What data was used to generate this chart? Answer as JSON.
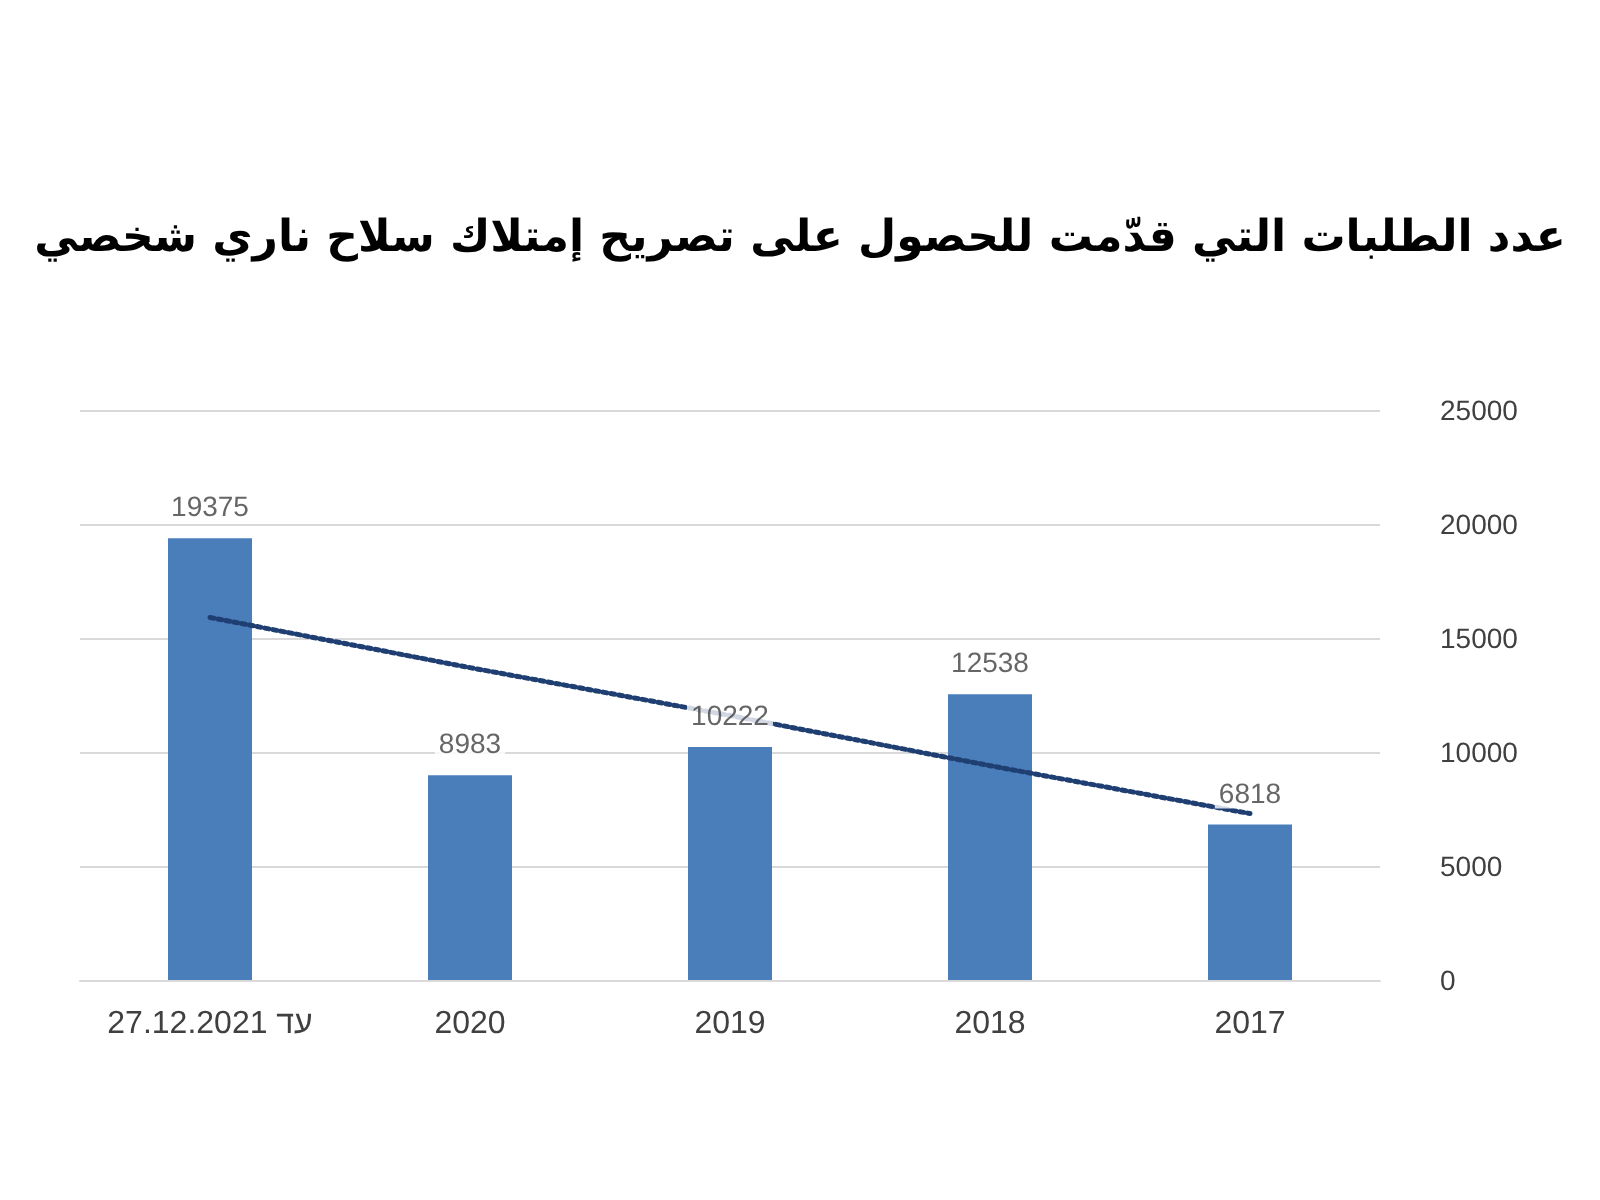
{
  "chart_data": {
    "type": "bar",
    "title": "عدد الطلبات التي قدّمت للحصول على تصريح إمتلاك سلاح ناري شخصي",
    "categories": [
      "עד 27.12.2021",
      "2020",
      "2019",
      "2018",
      "2017"
    ],
    "series": [
      {
        "color": "#4a7ebb",
        "values": [
          19375,
          8983,
          10222,
          12538,
          6818
        ],
        "value_labels": [
          "19375",
          "8983",
          "10222",
          "12538",
          "6818"
        ]
      },
      {
        "type": "line",
        "color": "#1f3f73",
        "line_style": "dotted",
        "marker": "none",
        "values": [
          15900,
          13700,
          11600,
          9400,
          7300
        ]
      }
    ],
    "ylim": [
      0,
      25000
    ],
    "yticks": [
      0,
      5000,
      10000,
      15000,
      20000,
      25000
    ],
    "grid": "y"
  }
}
